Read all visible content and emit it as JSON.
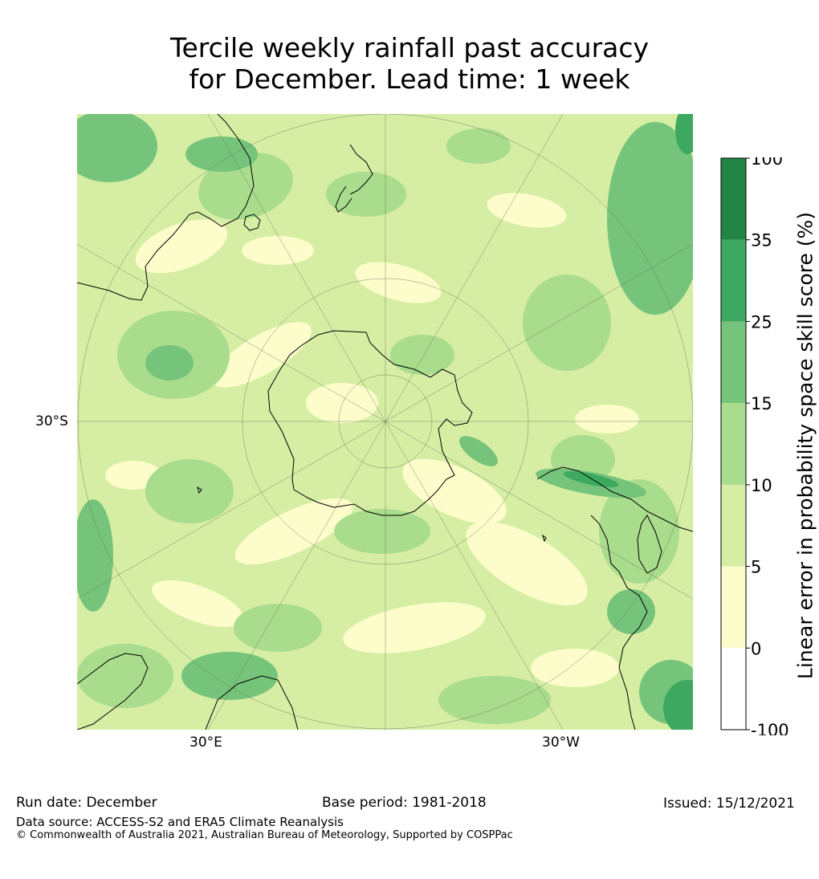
{
  "title": {
    "line1": "Tercile weekly rainfall past accuracy",
    "line2": "for December. Lead time: 1 week"
  },
  "map": {
    "projection": "South polar stereographic",
    "graticule_labels": {
      "lat_left": "30°S",
      "lon_bottom_left": "30°E",
      "lon_bottom_right": "30°W"
    },
    "colors": {
      "ocean_low": "#d6eda4",
      "ocean_lowest": "#fdfdcb",
      "mid": "#a9dc8c",
      "high": "#76c47b",
      "very_high": "#3da960",
      "coast": "#000000",
      "grid": "#5f6f5a"
    }
  },
  "colorbar": {
    "label": "Linear error in probability space skill score (%)",
    "ticks": [
      "-100",
      "0",
      "5",
      "10",
      "15",
      "25",
      "35",
      "100"
    ],
    "bins": [
      {
        "from": -100,
        "to": 0,
        "color": "#ffffff"
      },
      {
        "from": 0,
        "to": 5,
        "color": "#fdfdcb"
      },
      {
        "from": 5,
        "to": 10,
        "color": "#d6eda4"
      },
      {
        "from": 10,
        "to": 15,
        "color": "#a9dc8c"
      },
      {
        "from": 15,
        "to": 25,
        "color": "#76c47b"
      },
      {
        "from": 25,
        "to": 35,
        "color": "#3da960"
      },
      {
        "from": 35,
        "to": 100,
        "color": "#228543"
      }
    ]
  },
  "footer": {
    "run_date": "Run date: December",
    "base_period": "Base period: 1981-2018",
    "issued": "Issued: 15/12/2021",
    "data_source": "Data source: ACCESS-S2 and ERA5 Climate Reanalysis",
    "copyright": "© Commonwealth of Australia 2021, Australian Bureau of Meteorology, Supported by COSPPac"
  }
}
